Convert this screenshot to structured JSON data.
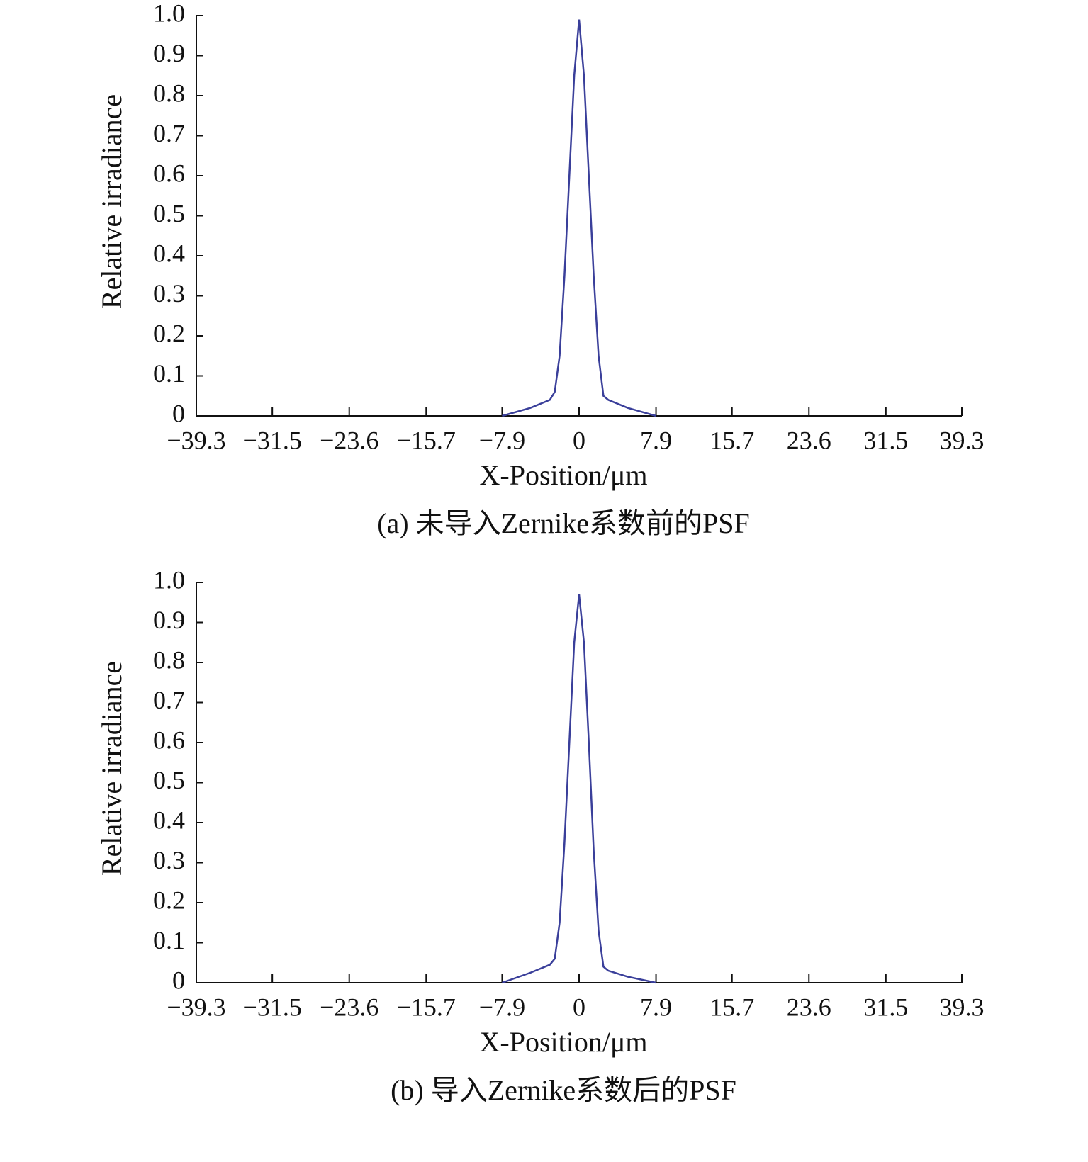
{
  "chart_data": [
    {
      "type": "line",
      "caption": "(a) 未导入Zernike系数前的PSF",
      "x_label": "X-Position/μm",
      "y_label": "Relative irradiance",
      "x": [
        -7.9,
        -5,
        -3,
        -2.5,
        -2,
        -1.5,
        -1,
        -0.5,
        0,
        0.5,
        1,
        1.5,
        2,
        2.5,
        3,
        5,
        7.9
      ],
      "series": [
        {
          "name": "PSF",
          "color": "#3a3f9a",
          "values": [
            0,
            0.02,
            0.04,
            0.06,
            0.15,
            0.35,
            0.6,
            0.85,
            0.99,
            0.85,
            0.6,
            0.35,
            0.15,
            0.05,
            0.04,
            0.02,
            0
          ]
        }
      ],
      "xlim": [
        -39.3,
        39.3
      ],
      "xticks": [
        {
          "value": -39.3,
          "label": "−39.3"
        },
        {
          "value": -31.5,
          "label": "−31.5"
        },
        {
          "value": -23.6,
          "label": "−23.6"
        },
        {
          "value": -15.7,
          "label": "−15.7"
        },
        {
          "value": -7.9,
          "label": "−7.9"
        },
        0,
        7.9,
        15.7,
        23.6,
        31.5,
        39.3
      ],
      "ylim": [
        0,
        1
      ],
      "yticks": [
        0,
        0.1,
        0.2,
        0.3,
        0.4,
        0.5,
        0.6,
        0.7,
        0.8,
        0.9,
        {
          "value": 1,
          "label": "1.0"
        }
      ]
    },
    {
      "type": "line",
      "caption": "(b) 导入Zernike系数后的PSF",
      "x_label": "X-Position/μm",
      "y_label": "Relative irradiance",
      "x": [
        -7.9,
        -5,
        -3,
        -2.5,
        -2,
        -1.5,
        -1,
        -0.5,
        0,
        0.5,
        1,
        1.5,
        2,
        2.5,
        3,
        5,
        7.9
      ],
      "series": [
        {
          "name": "PSF",
          "color": "#3a3f9a",
          "values": [
            0,
            0.025,
            0.045,
            0.06,
            0.15,
            0.35,
            0.6,
            0.85,
            0.97,
            0.85,
            0.6,
            0.33,
            0.13,
            0.04,
            0.03,
            0.015,
            0
          ]
        }
      ],
      "xlim": [
        -39.3,
        39.3
      ],
      "xticks": [
        {
          "value": -39.3,
          "label": "−39.3"
        },
        {
          "value": -31.5,
          "label": "−31.5"
        },
        {
          "value": -23.6,
          "label": "−23.6"
        },
        {
          "value": -15.7,
          "label": "−15.7"
        },
        {
          "value": -7.9,
          "label": "−7.9"
        },
        0,
        7.9,
        15.7,
        23.6,
        31.5,
        39.3
      ],
      "ylim": [
        0,
        1
      ],
      "yticks": [
        0,
        0.1,
        0.2,
        0.3,
        0.4,
        0.5,
        0.6,
        0.7,
        0.8,
        0.9,
        {
          "value": 1,
          "label": "1.0"
        }
      ]
    }
  ]
}
